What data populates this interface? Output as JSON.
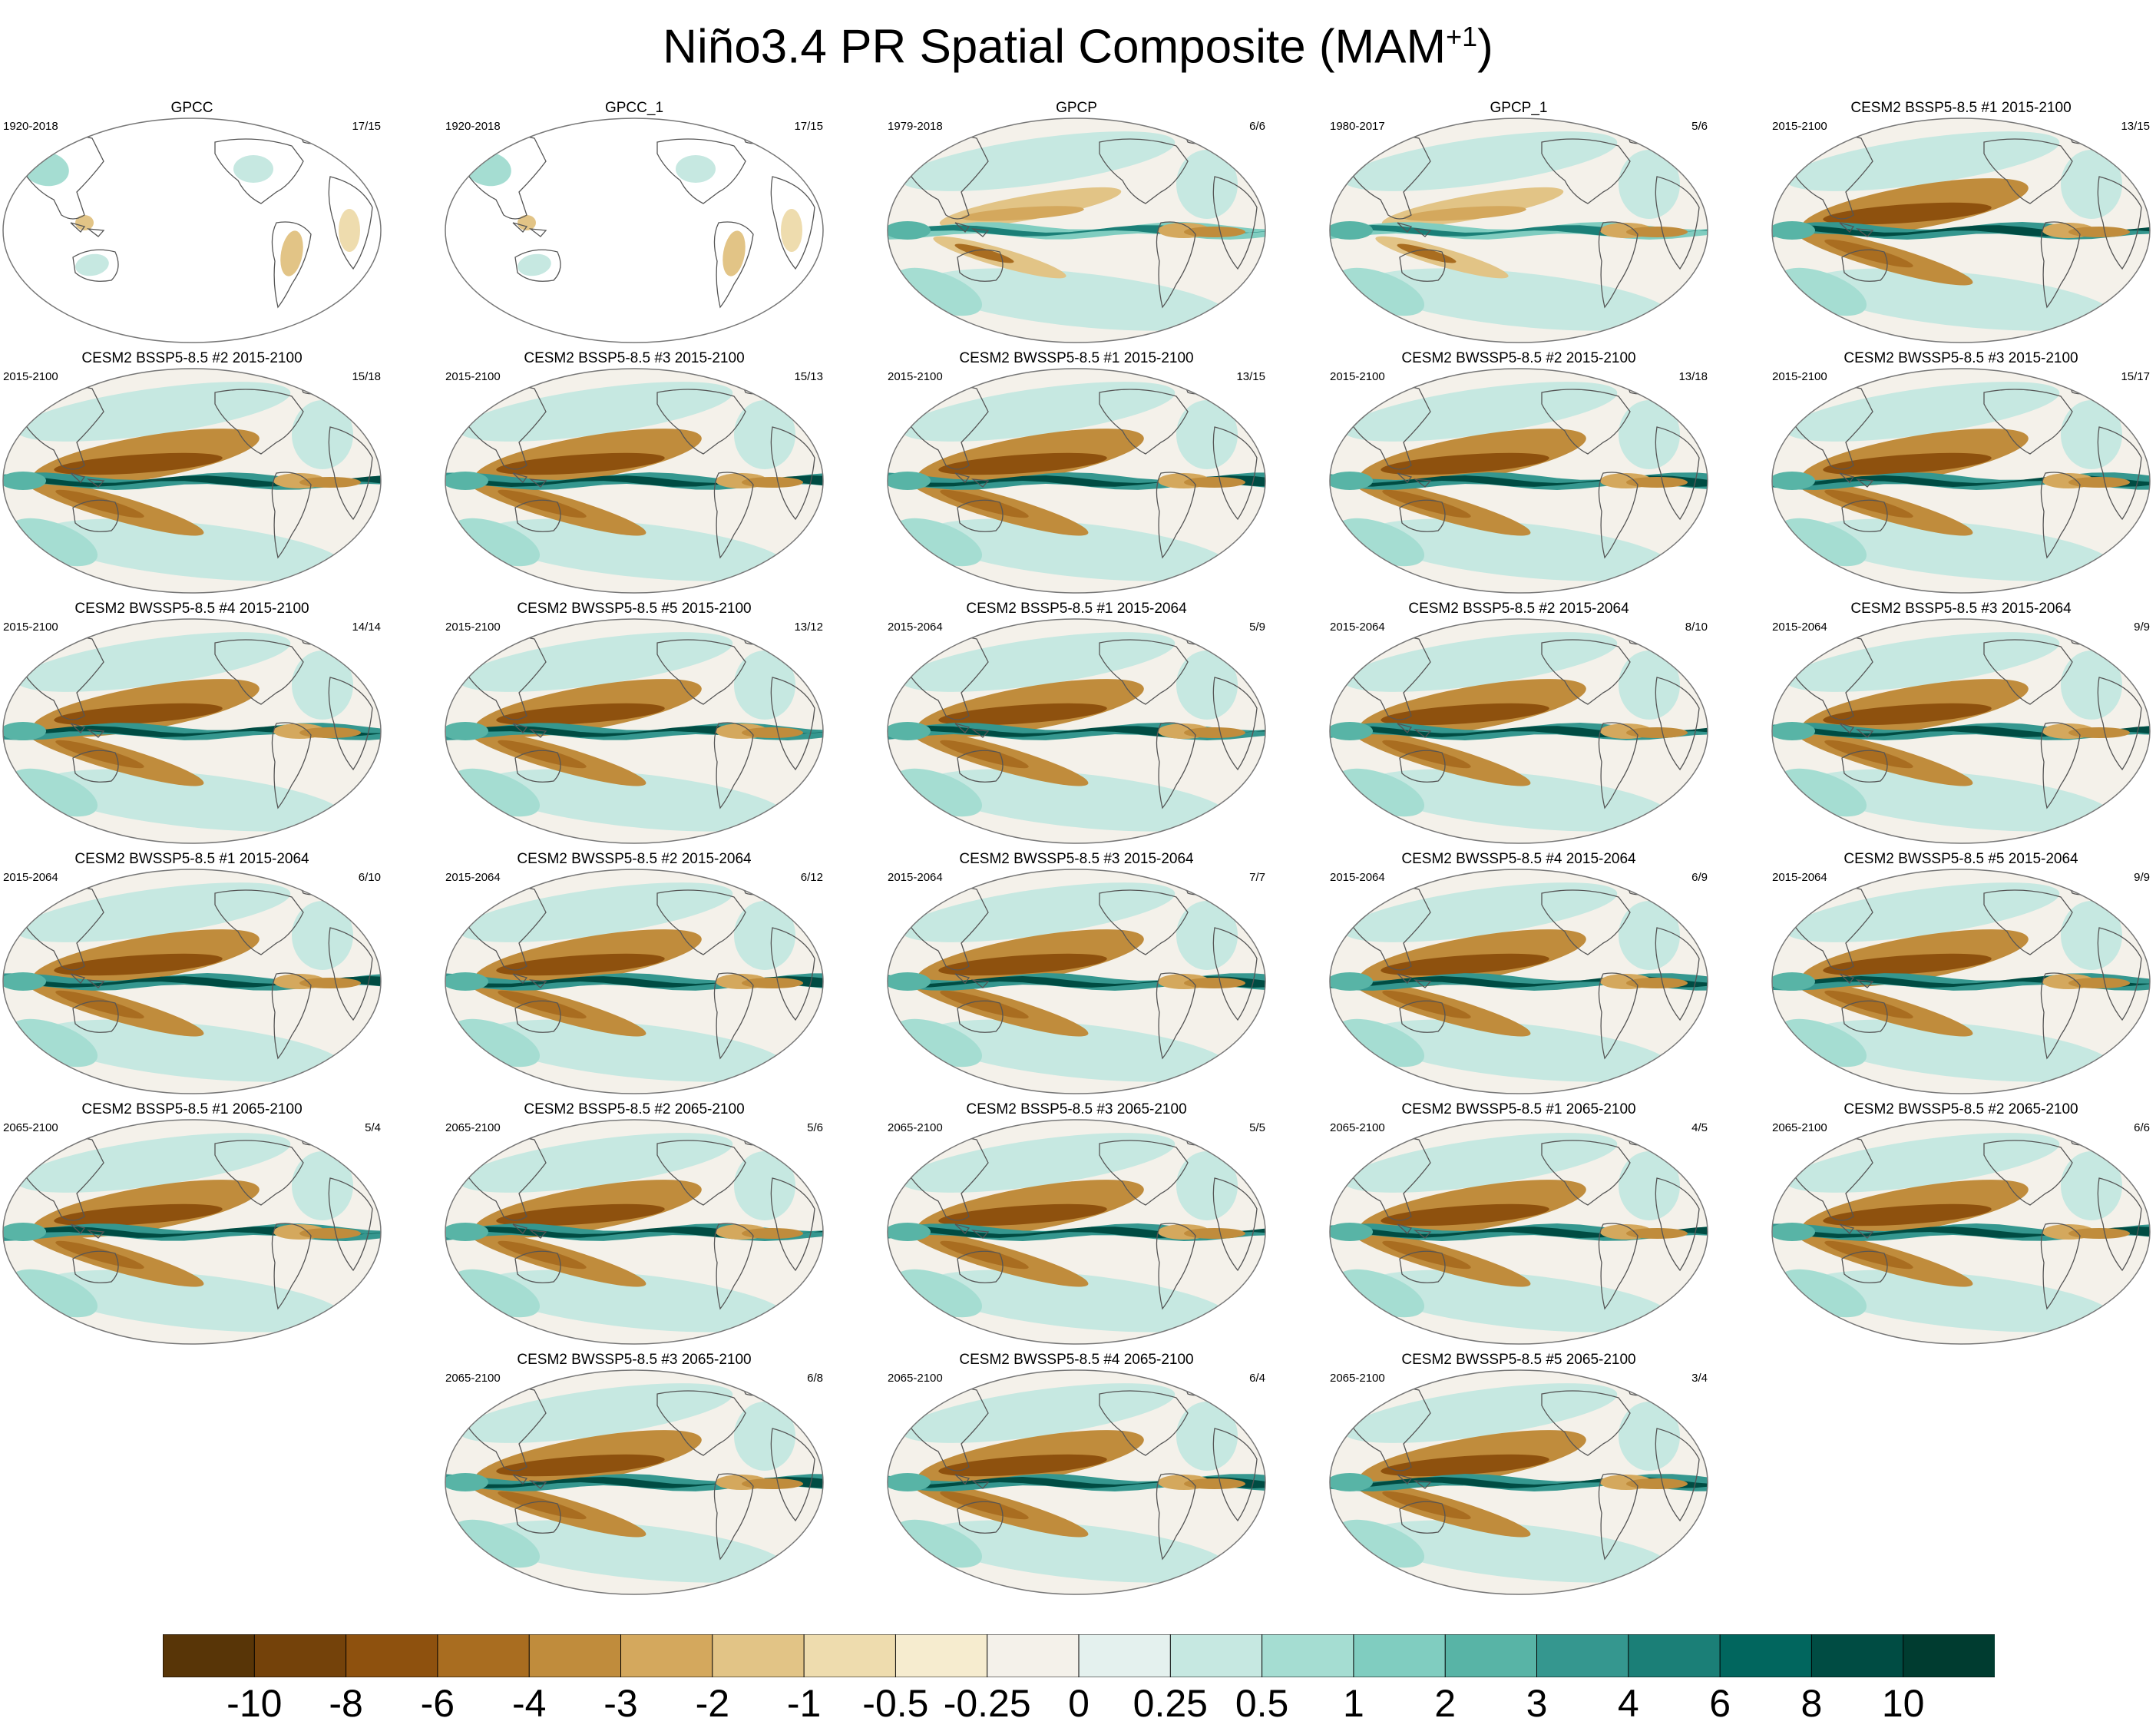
{
  "title": {
    "main": "Niño3.4 PR Spatial Composite (MAM",
    "sup": "+1",
    "close": ")"
  },
  "panels": [
    {
      "title": "GPCC",
      "period": "1920-2018",
      "count": "17/15",
      "variant": "obs-land"
    },
    {
      "title": "GPCC_1",
      "period": "1920-2018",
      "count": "17/15",
      "variant": "obs-land"
    },
    {
      "title": "GPCP",
      "period": "1979-2018",
      "count": "6/6",
      "variant": "obs"
    },
    {
      "title": "GPCP_1",
      "period": "1980-2017",
      "count": "5/6",
      "variant": "obs"
    },
    {
      "title": "CESM2 BSSP5-8.5 #1 2015-2100",
      "period": "2015-2100",
      "count": "13/15",
      "variant": "model"
    },
    {
      "title": "CESM2 BSSP5-8.5 #2 2015-2100",
      "period": "2015-2100",
      "count": "15/18",
      "variant": "model"
    },
    {
      "title": "CESM2 BSSP5-8.5 #3 2015-2100",
      "period": "2015-2100",
      "count": "15/13",
      "variant": "model"
    },
    {
      "title": "CESM2 BWSSP5-8.5 #1 2015-2100",
      "period": "2015-2100",
      "count": "13/15",
      "variant": "model"
    },
    {
      "title": "CESM2 BWSSP5-8.5 #2 2015-2100",
      "period": "2015-2100",
      "count": "13/18",
      "variant": "model"
    },
    {
      "title": "CESM2 BWSSP5-8.5 #3 2015-2100",
      "period": "2015-2100",
      "count": "15/17",
      "variant": "model"
    },
    {
      "title": "CESM2 BWSSP5-8.5 #4 2015-2100",
      "period": "2015-2100",
      "count": "14/14",
      "variant": "model"
    },
    {
      "title": "CESM2 BWSSP5-8.5 #5 2015-2100",
      "period": "2015-2100",
      "count": "13/12",
      "variant": "model"
    },
    {
      "title": "CESM2 BSSP5-8.5 #1 2015-2064",
      "period": "2015-2064",
      "count": "5/9",
      "variant": "model"
    },
    {
      "title": "CESM2 BSSP5-8.5 #2 2015-2064",
      "period": "2015-2064",
      "count": "8/10",
      "variant": "model"
    },
    {
      "title": "CESM2 BSSP5-8.5 #3 2015-2064",
      "period": "2015-2064",
      "count": "9/9",
      "variant": "model"
    },
    {
      "title": "CESM2 BWSSP5-8.5 #1 2015-2064",
      "period": "2015-2064",
      "count": "6/10",
      "variant": "model"
    },
    {
      "title": "CESM2 BWSSP5-8.5 #2 2015-2064",
      "period": "2015-2064",
      "count": "6/12",
      "variant": "model"
    },
    {
      "title": "CESM2 BWSSP5-8.5 #3 2015-2064",
      "period": "2015-2064",
      "count": "7/7",
      "variant": "model"
    },
    {
      "title": "CESM2 BWSSP5-8.5 #4 2015-2064",
      "period": "2015-2064",
      "count": "6/9",
      "variant": "model"
    },
    {
      "title": "CESM2 BWSSP5-8.5 #5 2015-2064",
      "period": "2015-2064",
      "count": "9/9",
      "variant": "model"
    },
    {
      "title": "CESM2 BSSP5-8.5 #1 2065-2100",
      "period": "2065-2100",
      "count": "5/4",
      "variant": "model"
    },
    {
      "title": "CESM2 BSSP5-8.5 #2 2065-2100",
      "period": "2065-2100",
      "count": "5/6",
      "variant": "model"
    },
    {
      "title": "CESM2 BSSP5-8.5 #3 2065-2100",
      "period": "2065-2100",
      "count": "5/5",
      "variant": "model"
    },
    {
      "title": "CESM2 BWSSP5-8.5 #1 2065-2100",
      "period": "2065-2100",
      "count": "4/5",
      "variant": "model"
    },
    {
      "title": "CESM2 BWSSP5-8.5 #2 2065-2100",
      "period": "2065-2100",
      "count": "6/6",
      "variant": "model"
    },
    {
      "title": "CESM2 BWSSP5-8.5 #3 2065-2100",
      "period": "2065-2100",
      "count": "6/8",
      "variant": "model"
    },
    {
      "title": "CESM2 BWSSP5-8.5 #4 2065-2100",
      "period": "2065-2100",
      "count": "6/4",
      "variant": "model"
    },
    {
      "title": "CESM2 BWSSP5-8.5 #5 2065-2100",
      "period": "2065-2100",
      "count": "3/4",
      "variant": "model"
    }
  ],
  "colorbar": {
    "labels": [
      "-10",
      "-8",
      "-6",
      "-4",
      "-3",
      "-2",
      "-1",
      "-0.5",
      "-0.25",
      "0",
      "0.25",
      "0.5",
      "1",
      "2",
      "3",
      "4",
      "6",
      "8",
      "10"
    ],
    "colors": [
      "#583507",
      "#74420a",
      "#8e510e",
      "#a96d20",
      "#c08c3c",
      "#d4a85d",
      "#e2c486",
      "#eedcae",
      "#f6eccf",
      "#f4f1ea",
      "#e4f1ee",
      "#c6e8e1",
      "#a5ddd2",
      "#80cdc0",
      "#58b4a6",
      "#35978f",
      "#1b7f77",
      "#01665e",
      "#004c43",
      "#003c30"
    ]
  }
}
